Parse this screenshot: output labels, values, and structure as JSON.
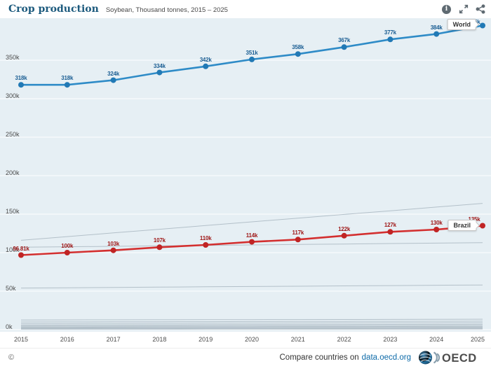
{
  "header": {
    "title": "Crop production",
    "subtitle": "Soybean, Thousand tonnes, 2015 – 2025",
    "icons": [
      {
        "name": "info-icon",
        "glyph": "i"
      },
      {
        "name": "fullscreen-icon"
      },
      {
        "name": "share-icon"
      }
    ]
  },
  "chart_data": {
    "type": "line",
    "title": "Crop production",
    "subtitle": "Soybean, Thousand tonnes, 2015 – 2025",
    "unit": "Thousand tonnes",
    "x": [
      2015,
      2016,
      2017,
      2018,
      2019,
      2020,
      2021,
      2022,
      2023,
      2024,
      2025
    ],
    "xlabels": [
      "2015",
      "2016",
      "2017",
      "2018",
      "2019",
      "2020",
      "2021",
      "2022",
      "2023",
      "2024",
      "2025"
    ],
    "ytick_values": [
      0,
      50,
      100,
      150,
      200,
      250,
      300,
      350
    ],
    "ytick_labels": [
      "0k",
      "50k",
      "100k",
      "150k",
      "200k",
      "250k",
      "300k",
      "350k"
    ],
    "ylim": [
      0,
      405
    ],
    "grid": "horizontal-white-lines",
    "legend_position": "end-of-line-boxes",
    "colors": {
      "background": "#e6eff4",
      "gridline": "#ffffff",
      "background_series": "#b3c0c9"
    },
    "series": [
      {
        "name": "World",
        "color": "#2e8bc7",
        "dot_color": "#2179b5",
        "label_color": "#1b5e93",
        "values": [
          318,
          318,
          324,
          334,
          342,
          351,
          358,
          367,
          377,
          384,
          395
        ],
        "labels": [
          "318k",
          "318k",
          "324k",
          "334k",
          "342k",
          "351k",
          "358k",
          "367k",
          "377k",
          "384k",
          "395k"
        ]
      },
      {
        "name": "Brazil",
        "color": "#d32f2f",
        "dot_color": "#c02424",
        "label_color": "#9e1616",
        "values": [
          96.81,
          100,
          103,
          107,
          110,
          114,
          117,
          122,
          127,
          130,
          135
        ],
        "labels": [
          "96.81k",
          "100k",
          "103k",
          "107k",
          "110k",
          "114k",
          "117k",
          "122k",
          "127k",
          "130k",
          "135k"
        ]
      }
    ],
    "background_lines_approx": [
      {
        "start": 116,
        "end": 164
      },
      {
        "start": 107,
        "end": 113
      },
      {
        "start": 54,
        "end": 58
      },
      {
        "start": 12.5,
        "end": 13.5
      },
      {
        "start": 10,
        "end": 11
      },
      {
        "start": 8,
        "end": 9
      },
      {
        "start": 6.2,
        "end": 7
      },
      {
        "start": 4.8,
        "end": 5.5
      },
      {
        "start": 3.6,
        "end": 4.2
      },
      {
        "start": 2.6,
        "end": 3.1
      },
      {
        "start": 1.8,
        "end": 2.2
      },
      {
        "start": 1.1,
        "end": 1.5
      },
      {
        "start": 0.5,
        "end": 0.8
      }
    ]
  },
  "footer": {
    "copyright_symbol": "©",
    "compare_prefix": "Compare countries on",
    "link_text": "data.oecd.org",
    "logo_text": "OECD"
  }
}
